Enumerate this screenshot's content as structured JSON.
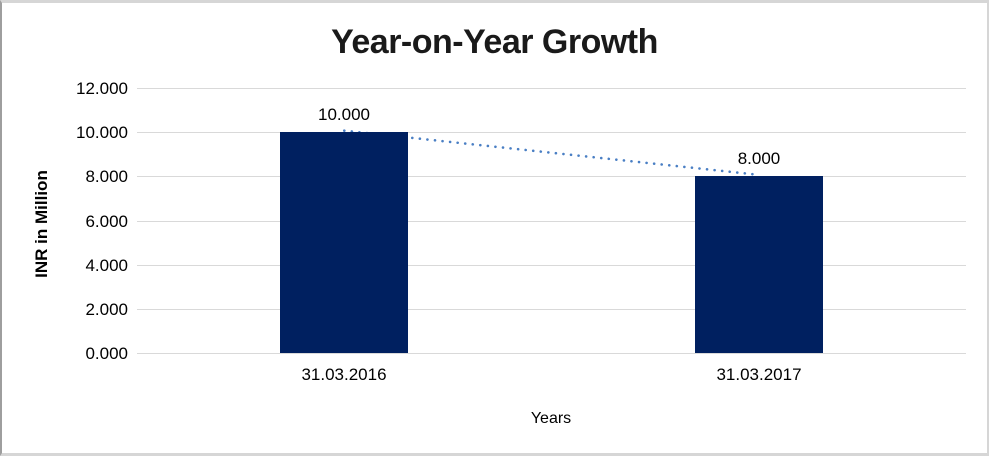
{
  "chart_data": {
    "type": "bar",
    "title": "Year-on-Year Growth",
    "xlabel": "Years",
    "ylabel": "INR in Million",
    "categories": [
      "31.03.2016",
      "31.03.2017"
    ],
    "values": [
      10000,
      8000
    ],
    "data_labels": [
      "10.000",
      "8.000"
    ],
    "ylim": [
      0,
      12000
    ],
    "y_ticks": [
      0,
      2000,
      4000,
      6000,
      8000,
      10000,
      12000
    ],
    "y_tick_labels": [
      "0.000",
      "2.000",
      "4.000",
      "6.000",
      "8.000",
      "10.000",
      "12.000"
    ],
    "grid": true,
    "legend": false,
    "bar_color": "#002060",
    "gridline_color": "#d9d9d9",
    "text_color": "#000000",
    "trendline": {
      "style": "dotted",
      "color": "#4a7fc4",
      "from_value": 10000,
      "to_value": 8000
    }
  }
}
